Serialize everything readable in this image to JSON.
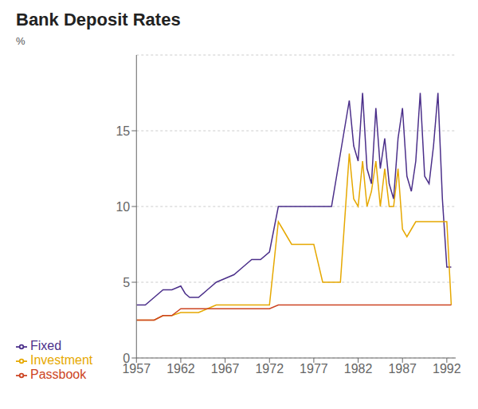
{
  "chart_data": {
    "type": "line",
    "title": "Bank Deposit Rates",
    "ylabel": "%",
    "series": [
      {
        "name": "Fixed",
        "color": "#4b2f8a",
        "x": [
          1957,
          1958,
          1959,
          1960,
          1961,
          1962,
          1962.5,
          1963,
          1964,
          1965,
          1966,
          1967,
          1968,
          1969,
          1970,
          1971,
          1972,
          1973,
          1974,
          1974.5,
          1975,
          1976,
          1977,
          1978,
          1979,
          1980,
          1981,
          1981.5,
          1982,
          1982.5,
          1983,
          1983.5,
          1984,
          1984.5,
          1985,
          1985.5,
          1986,
          1986.5,
          1987,
          1987.5,
          1988,
          1988.5,
          1989,
          1989.5,
          1990,
          1990.5,
          1991,
          1991.5,
          1992,
          1992.5
        ],
        "values": [
          3.5,
          3.5,
          4.0,
          4.5,
          4.5,
          4.75,
          4.25,
          4.0,
          4.0,
          4.5,
          5.0,
          5.25,
          5.5,
          6.0,
          6.5,
          6.5,
          7.0,
          10.0,
          10.0,
          10.0,
          10.0,
          10.0,
          10.0,
          10.0,
          10.0,
          13.5,
          17.0,
          14.0,
          13.0,
          17.5,
          12.5,
          11.5,
          16.5,
          12.5,
          14.5,
          11.5,
          10.5,
          14.5,
          16.5,
          12.0,
          11.0,
          13.0,
          17.5,
          12.0,
          11.5,
          14.0,
          17.5,
          10.5,
          6.0,
          6.0
        ]
      },
      {
        "name": "Investment",
        "color": "#e6a800",
        "x": [
          1957,
          1958,
          1959,
          1960,
          1961,
          1962,
          1963,
          1964,
          1965,
          1966,
          1967,
          1968,
          1969,
          1970,
          1971,
          1972,
          1973,
          1973.5,
          1974,
          1974.5,
          1975,
          1976,
          1977,
          1978,
          1979,
          1980,
          1981,
          1981.5,
          1982,
          1982.5,
          1983,
          1983.5,
          1984,
          1984.5,
          1985,
          1985.5,
          1986,
          1986.5,
          1987,
          1987.5,
          1988,
          1988.5,
          1989,
          1989.5,
          1990,
          1990.5,
          1991,
          1991.5,
          1992,
          1992.5
        ],
        "values": [
          2.5,
          2.5,
          2.5,
          2.8,
          2.8,
          3.0,
          3.0,
          3.0,
          3.25,
          3.5,
          3.5,
          3.5,
          3.5,
          3.5,
          3.5,
          3.5,
          9.0,
          8.5,
          8.0,
          7.5,
          7.5,
          7.5,
          7.5,
          5.0,
          5.0,
          5.0,
          13.5,
          10.5,
          10.0,
          13.0,
          10.0,
          11.0,
          13.0,
          10.0,
          12.5,
          10.0,
          10.0,
          12.5,
          8.5,
          8.0,
          8.5,
          9.0,
          9.0,
          9.0,
          9.0,
          9.0,
          9.0,
          9.0,
          9.0,
          3.5
        ]
      },
      {
        "name": "Passbook",
        "color": "#cc4422",
        "x": [
          1957,
          1958,
          1959,
          1960,
          1961,
          1962,
          1963,
          1964,
          1965,
          1966,
          1967,
          1968,
          1969,
          1970,
          1971,
          1972,
          1973,
          1974,
          1975,
          1980,
          1985,
          1990,
          1992,
          1992.5
        ],
        "values": [
          2.5,
          2.5,
          2.5,
          2.8,
          2.8,
          3.25,
          3.25,
          3.25,
          3.25,
          3.25,
          3.25,
          3.25,
          3.25,
          3.25,
          3.25,
          3.25,
          3.5,
          3.5,
          3.5,
          3.5,
          3.5,
          3.5,
          3.5,
          3.5
        ]
      }
    ],
    "xlim": [
      1957,
      1993
    ],
    "ylim": [
      0,
      20
    ],
    "xticks": [
      1957,
      1962,
      1967,
      1972,
      1977,
      1982,
      1987,
      1992
    ],
    "yticks": [
      0,
      5,
      10,
      15
    ],
    "grid": true,
    "legend": "lower left"
  }
}
